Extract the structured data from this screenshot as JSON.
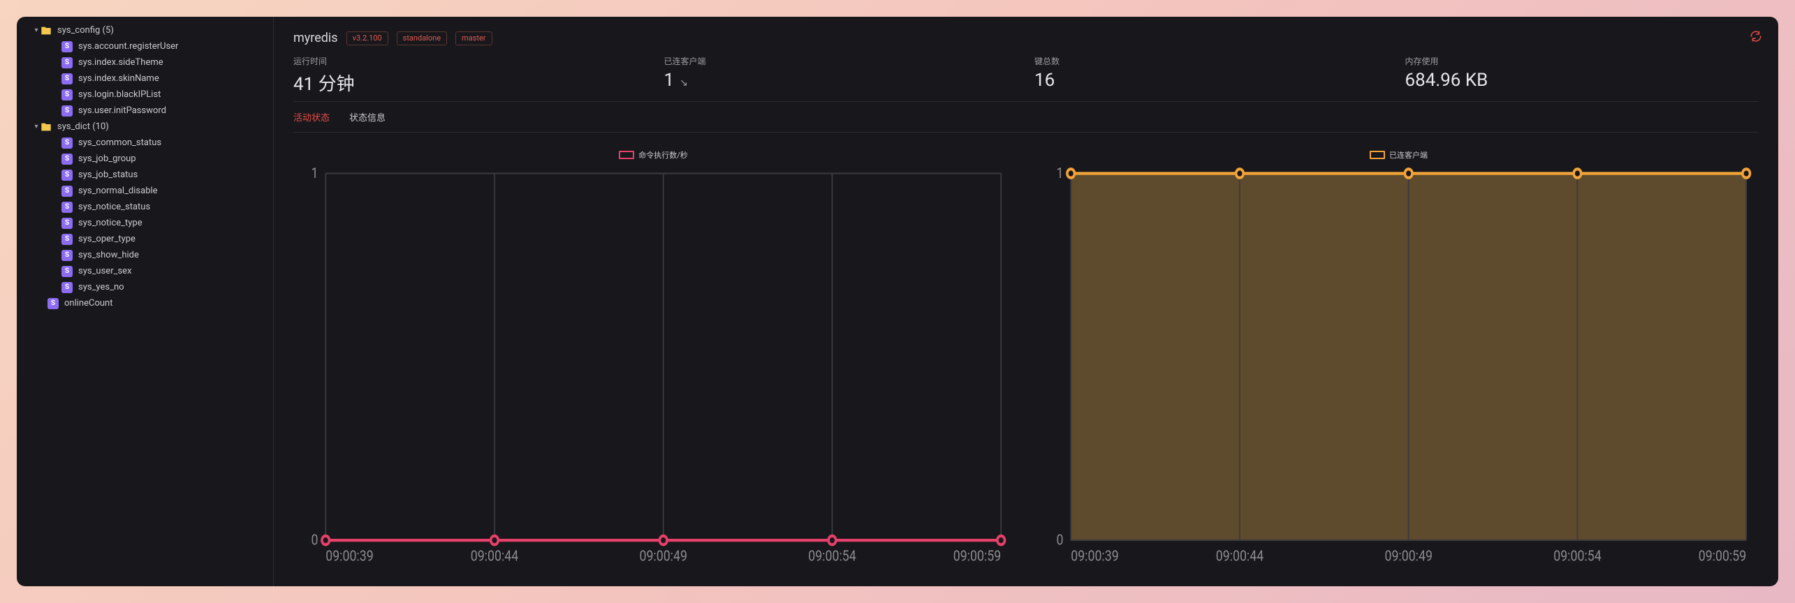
{
  "sidebar": {
    "folders": [
      {
        "key": "sys_config",
        "label": "sys_config (5)",
        "items": [
          "sys.account.registerUser",
          "sys.index.sideTheme",
          "sys.index.skinName",
          "sys.login.blackIPList",
          "sys.user.initPassword"
        ]
      },
      {
        "key": "sys_dict",
        "label": "sys_dict (10)",
        "items": [
          "sys_common_status",
          "sys_job_group",
          "sys_job_status",
          "sys_normal_disable",
          "sys_notice_status",
          "sys_notice_type",
          "sys_oper_type",
          "sys_show_hide",
          "sys_user_sex",
          "sys_yes_no"
        ]
      }
    ],
    "root_item": "onlineCount"
  },
  "header": {
    "name": "myredis",
    "tags": [
      "v3.2.100",
      "standalone",
      "master"
    ]
  },
  "stats": [
    {
      "label": "运行时间",
      "value": "41 分钟"
    },
    {
      "label": "已连客户端",
      "value": "1",
      "trend": "↘"
    },
    {
      "label": "键总数",
      "value": "16"
    },
    {
      "label": "内存使用",
      "value": "684.96 KB"
    }
  ],
  "tabs": [
    {
      "label": "活动状态",
      "active": true
    },
    {
      "label": "状态信息",
      "active": false
    }
  ],
  "charts": {
    "left": {
      "legend_label": "命令执行数/秒",
      "color": "#e6406b",
      "fill": "none",
      "ylim": [
        0,
        1
      ],
      "yticks": [
        0,
        1
      ],
      "xticks": [
        "09:00:39",
        "09:00:44",
        "09:00:49",
        "09:00:54",
        "09:00:59"
      ],
      "values": [
        0,
        0,
        0,
        0,
        0
      ]
    },
    "right": {
      "legend_label": "已连客户端",
      "color": "#f2a43a",
      "fill": "#6b5430",
      "ylim": [
        0,
        1
      ],
      "yticks": [
        0,
        1
      ],
      "xticks": [
        "09:00:39",
        "09:00:44",
        "09:00:49",
        "09:00:54",
        "09:00:59"
      ],
      "values": [
        1,
        1,
        1,
        1,
        1
      ]
    },
    "grid_color": "#3a3a40",
    "bg_color": "#18181c"
  },
  "colors": {
    "accent_red": "#e94b45",
    "string_badge": "#8b6cf2",
    "folder": "#f2c94c"
  }
}
